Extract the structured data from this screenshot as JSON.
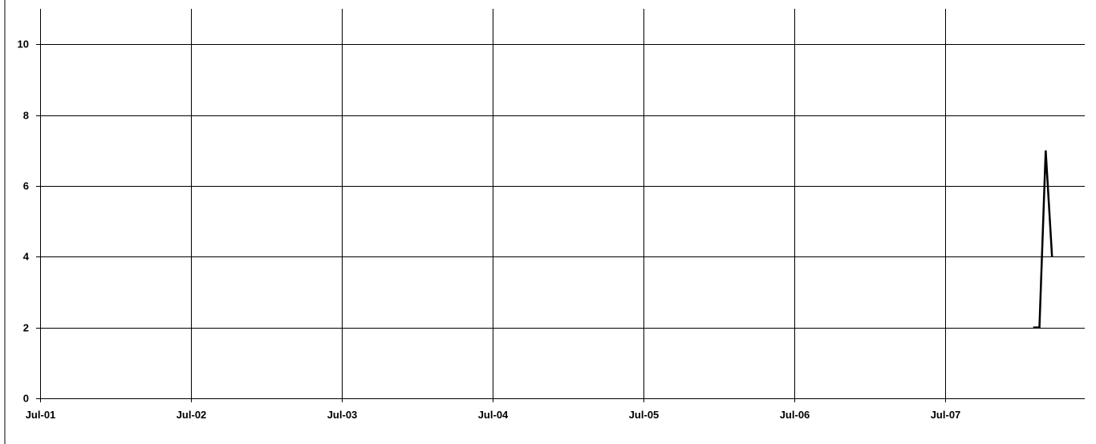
{
  "chart_data": {
    "type": "line",
    "title": "",
    "xlabel": "",
    "ylabel": "",
    "x_ticks": [
      "Jul-01",
      "Jul-02",
      "Jul-03",
      "Jul-04",
      "Jul-05",
      "Jul-06",
      "Jul-07"
    ],
    "x_range": [
      "Jul-01 00:00",
      "Jul-07 18:00"
    ],
    "ylim": [
      0,
      11
    ],
    "y_ticks": [
      0,
      2,
      4,
      6,
      8,
      10
    ],
    "grid": true,
    "legend": "none",
    "series": [
      {
        "color": "#000000",
        "points": [
          {
            "x": "Jul-07 14:00",
            "y": 2
          },
          {
            "x": "Jul-07 15:00",
            "y": 2
          },
          {
            "x": "Jul-07 16:00",
            "y": 7
          },
          {
            "x": "Jul-07 17:00",
            "y": 4
          }
        ]
      }
    ]
  }
}
